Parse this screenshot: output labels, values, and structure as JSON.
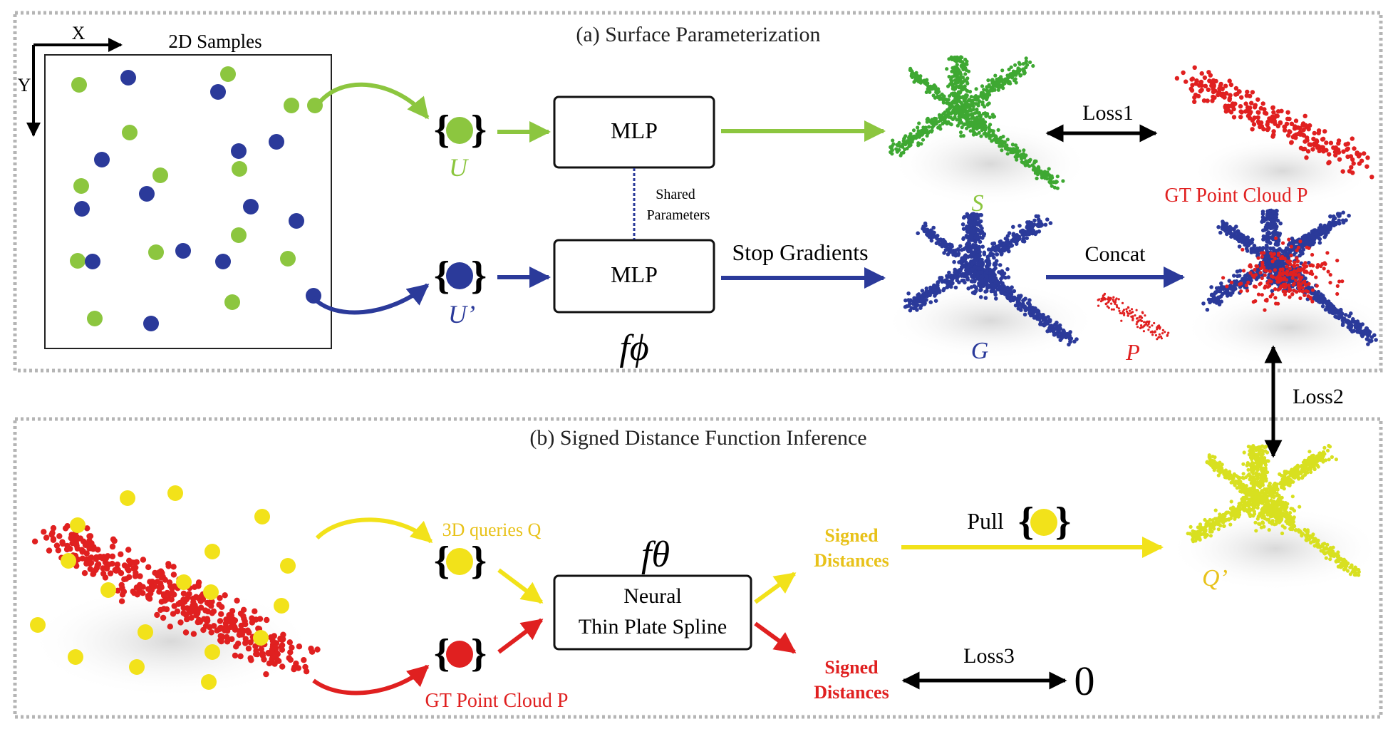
{
  "panel_a": {
    "title": "(a) Surface Parameterization",
    "samples_title": "2D Samples",
    "axis_x": "X",
    "axis_y": "Y",
    "set_u": "U",
    "set_u_prime": "U’",
    "mlp_top": "MLP",
    "mlp_bottom": "MLP",
    "shared_1": "Shared",
    "shared_2": "Parameters",
    "f_phi": "fϕ",
    "stop_gradients": "Stop Gradients",
    "loss1": "Loss1",
    "concat": "Concat",
    "label_s": "S",
    "label_g": "G",
    "label_p_small": "P",
    "gt_point_cloud": "GT Point Cloud P"
  },
  "loss2": "Loss2",
  "panel_b": {
    "title": "(b) Signed Distance Function Inference",
    "queries": "3D queries Q",
    "gt_point_cloud": "GT Point Cloud P",
    "f_theta": "fθ",
    "ntps_1": "Neural",
    "ntps_2": "Thin Plate Spline",
    "signed_1a": "Signed",
    "signed_1b": "Distances",
    "signed_2a": "Signed",
    "signed_2b": "Distances",
    "pull": "Pull",
    "loss3": "Loss3",
    "zero": "0",
    "label_q_prime": "Q’"
  },
  "colors": {
    "green": "#8cc63f",
    "blue": "#2b3a9a",
    "red": "#e02020",
    "yellow": "#f2e21a",
    "yellow_text": "#e8c21a",
    "cloud_green": "#3ea832",
    "cloud_yellow": "#d8e020",
    "frame": "#aaaaaa"
  }
}
